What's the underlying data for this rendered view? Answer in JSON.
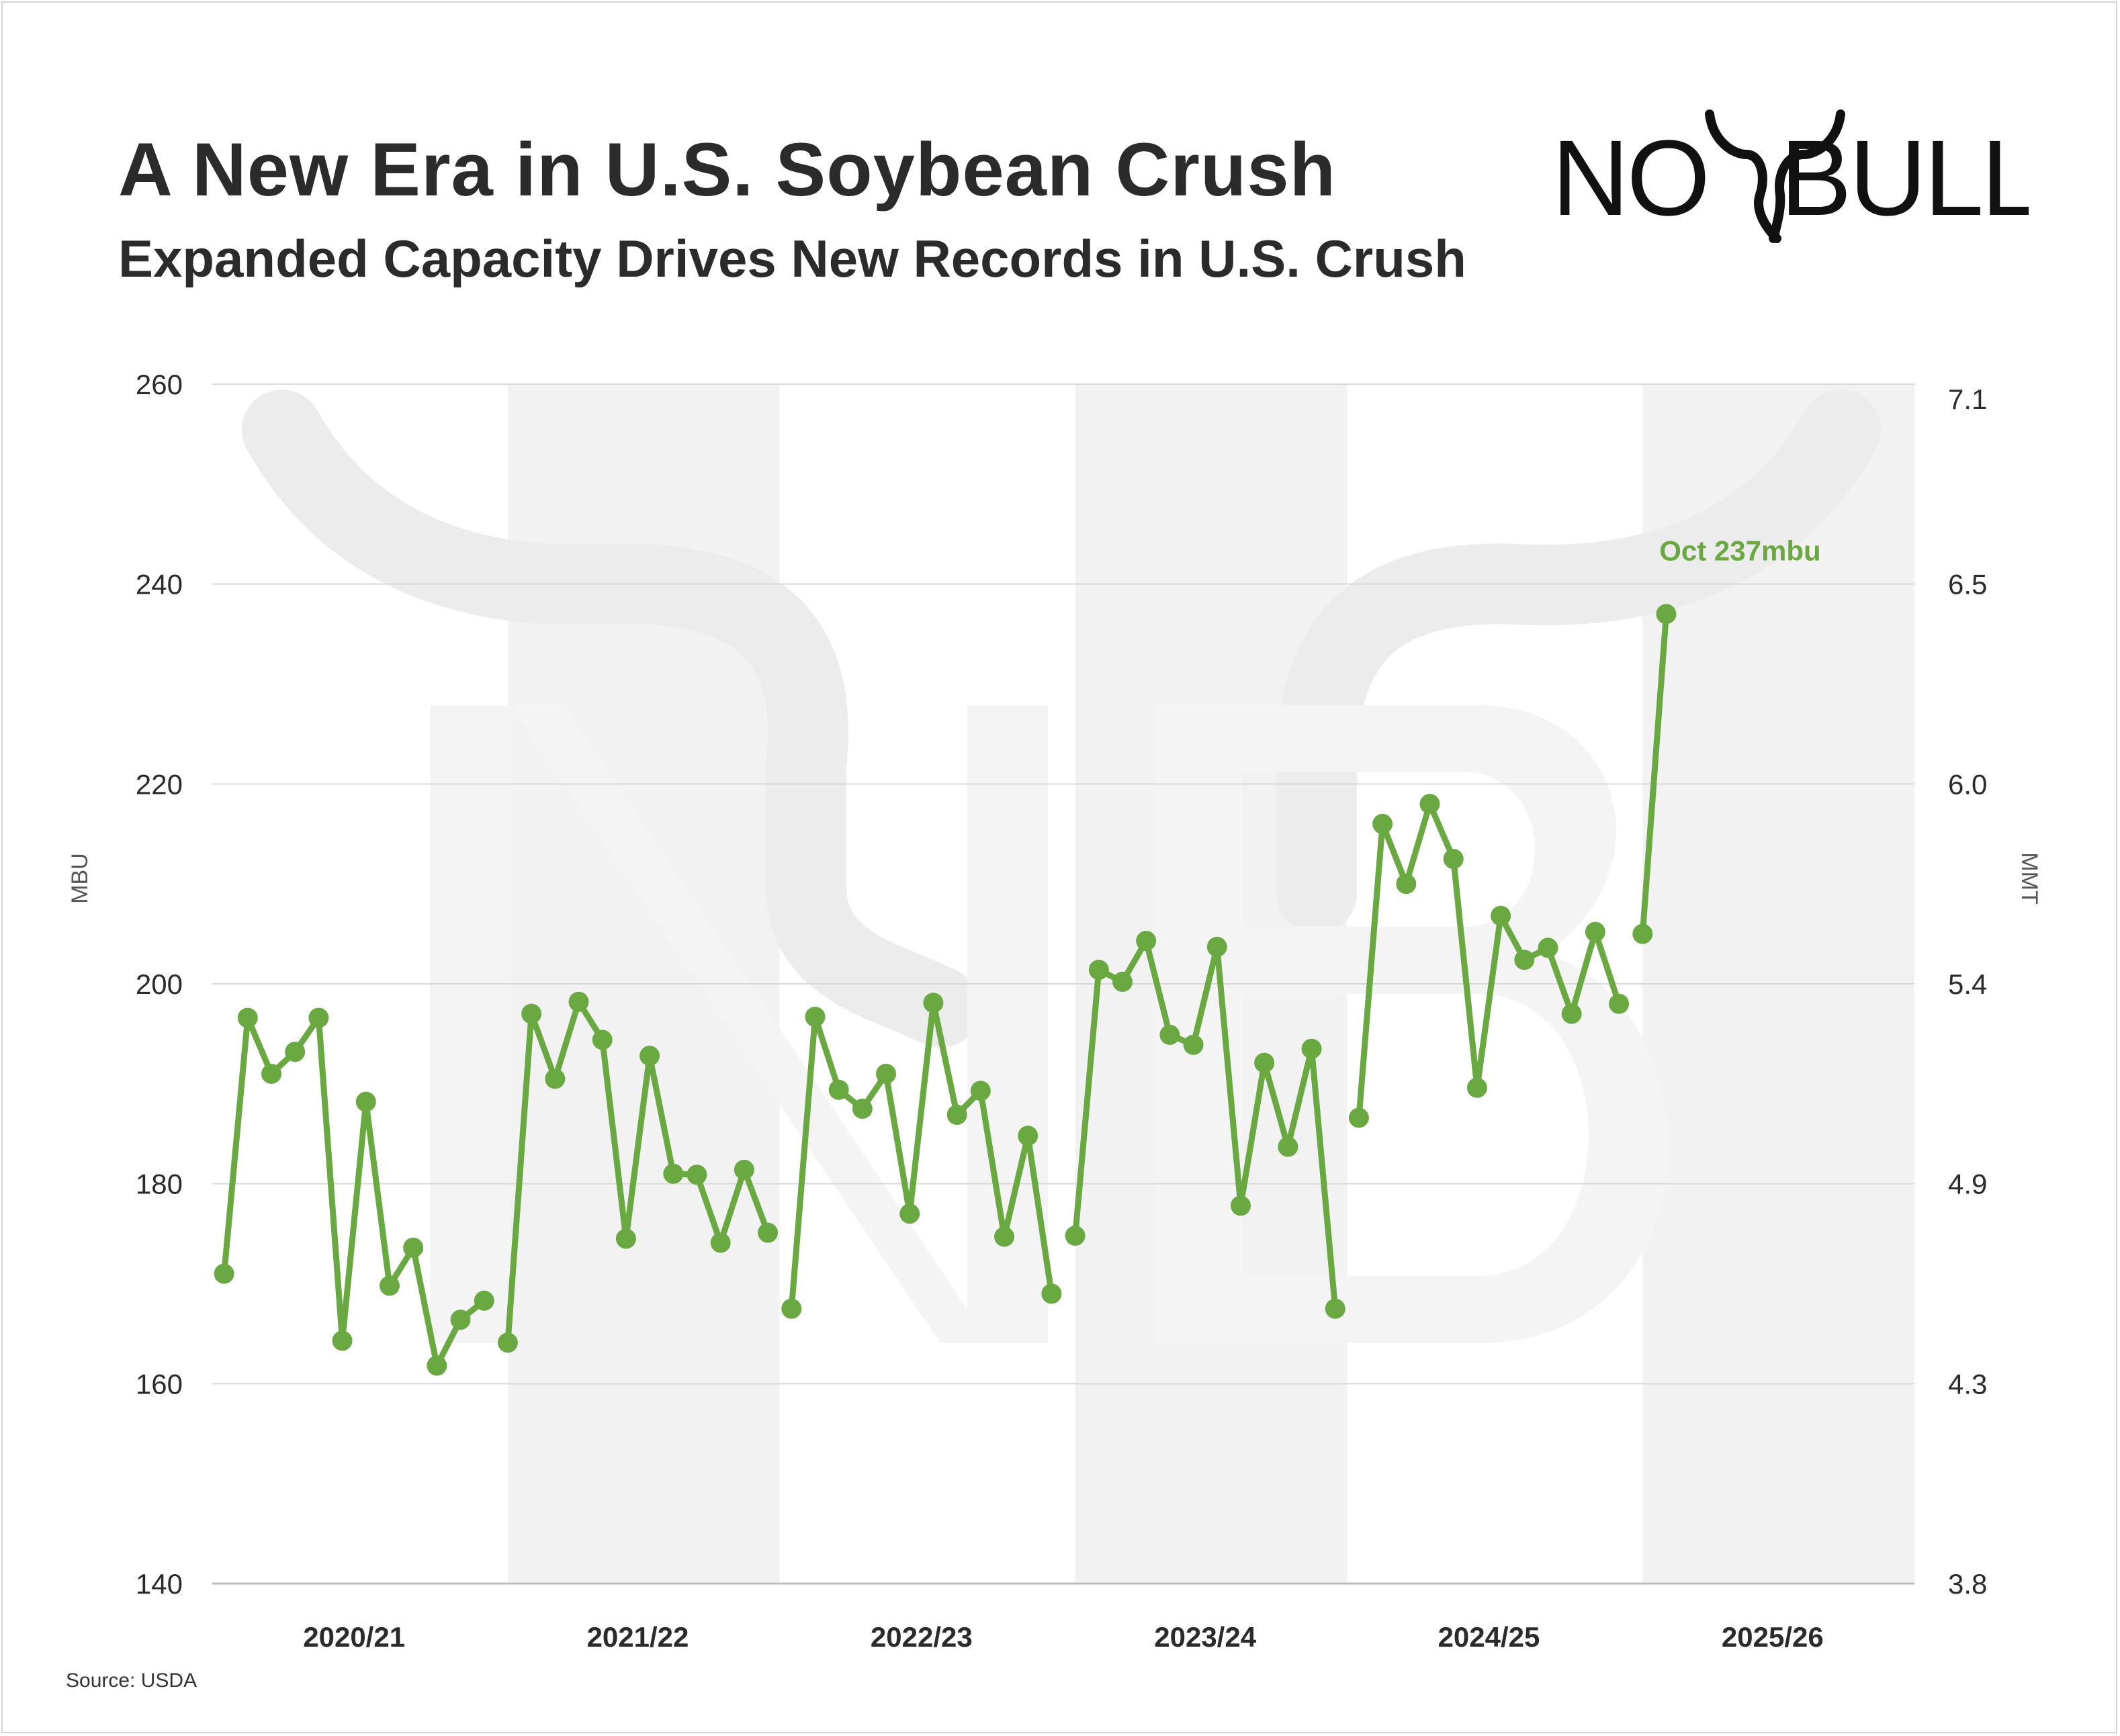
{
  "header": {
    "title": "A New Era in U.S. Soybean Crush",
    "subtitle": "Expanded Capacity Drives New Records in U.S. Crush"
  },
  "logo": {
    "text_left": "NO",
    "text_right": "BULL",
    "icon": "bull-horns-logo-icon"
  },
  "footer": {
    "source": "Source: USDA"
  },
  "colors": {
    "series": "#6aa842",
    "band": "#f2f2f2",
    "grid": "#d9d9d9",
    "text": "#2b2b2b",
    "watermark": "#ebebeb"
  },
  "chart_data": {
    "type": "line",
    "ylabel": "MBU",
    "y2label": "MMT",
    "ylim": [
      140,
      260
    ],
    "y_ticks": [
      140,
      160,
      180,
      200,
      220,
      240,
      260
    ],
    "y2_ticks": [
      "3.8",
      "4.3",
      "4.9",
      "5.4",
      "6.0",
      "6.5",
      "7.1"
    ],
    "grid": true,
    "alternating_year_bands": true,
    "marketing_years": [
      "2020/21",
      "2021/22",
      "2022/23",
      "2023/24",
      "2024/25",
      "2025/26"
    ],
    "months_per_year": 12,
    "series": [
      {
        "values": [
          [
            171.0,
            196.6,
            191.0,
            193.2,
            196.6,
            164.3,
            188.2,
            169.8,
            173.6,
            161.8,
            166.4,
            168.3
          ],
          [
            164.1,
            197.0,
            190.5,
            198.2,
            194.4,
            174.5,
            192.8,
            181.0,
            180.9,
            174.1,
            181.4,
            175.1
          ],
          [
            167.5,
            196.7,
            189.4,
            187.5,
            191.0,
            177.0,
            198.1,
            186.9,
            189.3,
            174.7,
            184.8,
            169.0
          ],
          [
            174.8,
            201.4,
            200.2,
            204.3,
            194.9,
            193.9,
            203.7,
            177.8,
            192.1,
            183.7,
            193.5,
            167.5
          ],
          [
            186.6,
            216.0,
            210.0,
            218.0,
            212.5,
            189.6,
            206.8,
            202.4,
            203.6,
            197.0,
            205.2,
            198.0
          ],
          [
            205.0,
            237.0
          ]
        ]
      }
    ],
    "annotations": [
      {
        "text": "Oct 237mbu",
        "year_index": 5,
        "month_index": 1,
        "value": 237
      }
    ]
  }
}
